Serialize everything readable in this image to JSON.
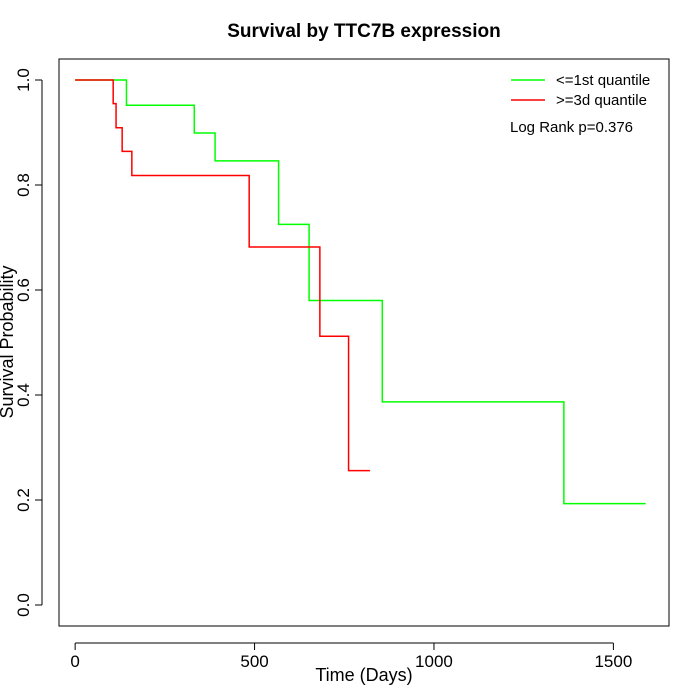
{
  "chart_data": {
    "type": "line",
    "title": "Survival by TTC7B expression",
    "xlabel": "Time (Days)",
    "ylabel": "Survival Probability",
    "xlim": [
      -45,
      1655
    ],
    "ylim": [
      -0.04,
      1.04
    ],
    "x_ticks": [
      0,
      500,
      1000,
      1500
    ],
    "y_ticks": [
      0.0,
      0.2,
      0.4,
      0.6,
      0.8,
      1.0
    ],
    "x_tick_labels": [
      "0",
      "500",
      "1000",
      "1500"
    ],
    "y_tick_labels": [
      "0.0",
      "0.2",
      "0.4",
      "0.6",
      "0.8",
      "1.0"
    ],
    "grid": false,
    "legend_position": "top-right",
    "annotation": "Log Rank p=0.376",
    "series": [
      {
        "name": "<=1st quantile",
        "color": "#00ff00",
        "x": [
          0,
          143,
          332,
          390,
          567,
          652,
          856,
          1362,
          1590
        ],
        "y": [
          1.0,
          0.952,
          0.899,
          0.846,
          0.725,
          0.58,
          0.387,
          0.193,
          0.193
        ]
      },
      {
        "name": ">=3d quantile",
        "color": "#ff0000",
        "x": [
          0,
          106,
          114,
          131,
          158,
          485,
          682,
          762,
          822
        ],
        "y": [
          1.0,
          0.955,
          0.909,
          0.864,
          0.818,
          0.682,
          0.512,
          0.256,
          0.256
        ]
      }
    ]
  }
}
